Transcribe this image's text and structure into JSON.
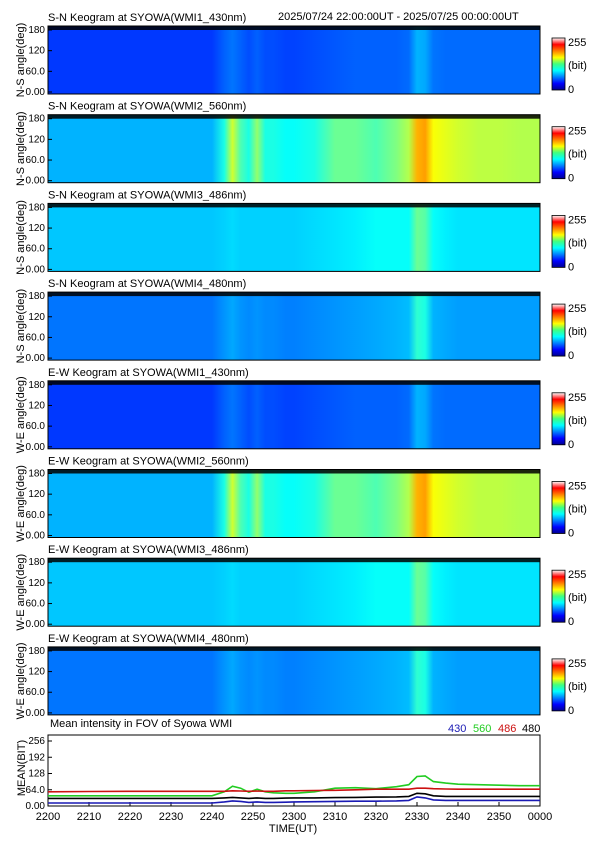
{
  "header": {
    "time_range": "2025/07/24 22:00:00UT - 2025/07/25 00:00:00UT"
  },
  "colorbar": {
    "max_label": "255",
    "unit_label": "(bit)",
    "min_label": "0"
  },
  "y_tick_labels": [
    "180",
    "120",
    "60.0",
    "0.00"
  ],
  "panels": [
    {
      "title": "S-N Keogram at SYOWA(WMI1_430nm)",
      "ylabel": "N-S angle(deg)",
      "channel": "430"
    },
    {
      "title": "S-N Keogram at SYOWA(WMI2_560nm)",
      "ylabel": "N-S angle(deg)",
      "channel": "560"
    },
    {
      "title": "S-N Keogram at SYOWA(WMI3_486nm)",
      "ylabel": "N-S angle(deg)",
      "channel": "486"
    },
    {
      "title": "S-N Keogram at SYOWA(WMI4_480nm)",
      "ylabel": "N-S angle(deg)",
      "channel": "480"
    },
    {
      "title": "E-W Keogram at SYOWA(WMI1_430nm)",
      "ylabel": "W-E angle(deg)",
      "channel": "430"
    },
    {
      "title": "E-W Keogram at SYOWA(WMI2_560nm)",
      "ylabel": "W-E angle(deg)",
      "channel": "560"
    },
    {
      "title": "E-W Keogram at SYOWA(WMI3_486nm)",
      "ylabel": "W-E angle(deg)",
      "channel": "486"
    },
    {
      "title": "E-W Keogram at SYOWA(WMI4_480nm)",
      "ylabel": "W-E angle(deg)",
      "channel": "480"
    }
  ],
  "keogram_intensity": {
    "time_minutes": [
      0,
      10,
      20,
      30,
      40,
      43,
      45,
      47,
      49,
      51,
      53,
      55,
      58,
      60,
      65,
      70,
      75,
      80,
      85,
      88,
      90,
      92,
      94,
      97,
      100,
      105,
      110,
      115,
      120
    ],
    "430": [
      0.18,
      0.18,
      0.18,
      0.18,
      0.18,
      0.22,
      0.24,
      0.22,
      0.2,
      0.22,
      0.2,
      0.2,
      0.19,
      0.19,
      0.2,
      0.21,
      0.22,
      0.22,
      0.22,
      0.23,
      0.3,
      0.29,
      0.24,
      0.23,
      0.23,
      0.23,
      0.23,
      0.23,
      0.23
    ],
    "560": [
      0.3,
      0.3,
      0.3,
      0.3,
      0.3,
      0.4,
      0.58,
      0.45,
      0.4,
      0.52,
      0.4,
      0.4,
      0.38,
      0.38,
      0.4,
      0.48,
      0.48,
      0.45,
      0.5,
      0.55,
      0.7,
      0.72,
      0.62,
      0.6,
      0.58,
      0.56,
      0.56,
      0.55,
      0.55
    ],
    "486": [
      0.32,
      0.32,
      0.32,
      0.32,
      0.32,
      0.33,
      0.34,
      0.33,
      0.33,
      0.33,
      0.33,
      0.33,
      0.33,
      0.33,
      0.34,
      0.35,
      0.36,
      0.38,
      0.38,
      0.38,
      0.48,
      0.46,
      0.38,
      0.36,
      0.35,
      0.35,
      0.35,
      0.35,
      0.35
    ],
    "480": [
      0.24,
      0.24,
      0.24,
      0.24,
      0.24,
      0.27,
      0.29,
      0.27,
      0.26,
      0.27,
      0.26,
      0.26,
      0.25,
      0.25,
      0.26,
      0.27,
      0.28,
      0.29,
      0.3,
      0.31,
      0.42,
      0.4,
      0.3,
      0.29,
      0.28,
      0.28,
      0.28,
      0.28,
      0.28
    ]
  },
  "mean_panel": {
    "title": "Mean intensity in FOV of Syowa WMI",
    "ylabel": "MEAN(BIT)",
    "xlabel": "TIME(UT)",
    "y_tick_labels": [
      "256",
      "192",
      "128",
      "64.0",
      "0.00"
    ],
    "x_tick_labels": [
      "2200",
      "2210",
      "2220",
      "2230",
      "2240",
      "2250",
      "2300",
      "2310",
      "2320",
      "2330",
      "2340",
      "2350",
      "0000"
    ],
    "legend": [
      {
        "label": "430",
        "color": "#1a1ab4"
      },
      {
        "label": "560",
        "color": "#22cc22"
      },
      {
        "label": "486",
        "color": "#cc1111"
      },
      {
        "label": "480",
        "color": "#000000"
      }
    ]
  },
  "chart_data": {
    "type": "line",
    "title": "Mean intensity in FOV of Syowa WMI",
    "xlabel": "TIME(UT)",
    "ylabel": "MEAN(BIT)",
    "ylim": [
      0,
      256
    ],
    "x_minutes": [
      0,
      10,
      20,
      30,
      40,
      43,
      45,
      47,
      49,
      51,
      53,
      55,
      58,
      60,
      65,
      70,
      75,
      80,
      85,
      88,
      90,
      92,
      94,
      97,
      100,
      105,
      110,
      115,
      120
    ],
    "series": [
      {
        "name": "430",
        "color": "#1a1ab4",
        "values": [
          12,
          12,
          12,
          12,
          12,
          16,
          20,
          18,
          14,
          16,
          14,
          14,
          15,
          16,
          17,
          18,
          19,
          19,
          20,
          22,
          36,
          32,
          24,
          22,
          22,
          22,
          22,
          22,
          22
        ]
      },
      {
        "name": "560",
        "color": "#22cc22",
        "values": [
          40,
          40,
          40,
          40,
          40,
          56,
          78,
          70,
          54,
          66,
          56,
          52,
          50,
          50,
          56,
          70,
          72,
          68,
          76,
          84,
          116,
          118,
          96,
          90,
          86,
          84,
          82,
          80,
          80
        ]
      },
      {
        "name": "486",
        "color": "#cc1111",
        "values": [
          56,
          57,
          58,
          58,
          58,
          58,
          60,
          59,
          58,
          59,
          58,
          58,
          60,
          60,
          61,
          62,
          64,
          66,
          66,
          66,
          70,
          70,
          68,
          67,
          66,
          66,
          66,
          66,
          66
        ]
      },
      {
        "name": "480",
        "color": "#000000",
        "values": [
          30,
          30,
          30,
          30,
          30,
          32,
          34,
          32,
          30,
          32,
          30,
          30,
          31,
          32,
          32,
          33,
          34,
          35,
          36,
          38,
          50,
          48,
          40,
          38,
          38,
          38,
          38,
          38,
          38
        ]
      }
    ]
  }
}
